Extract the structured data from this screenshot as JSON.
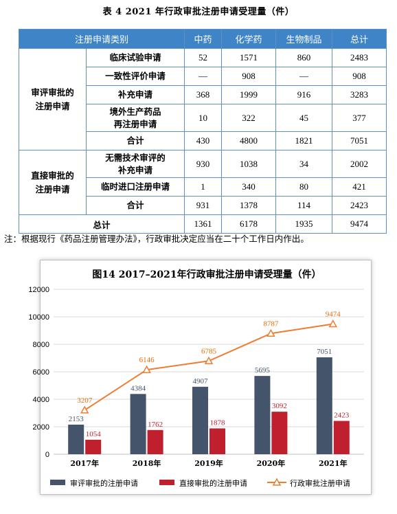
{
  "table": {
    "caption": "表 4   2021 年行政审批注册申请受理量（件）",
    "headers": [
      "注册申请类别",
      "中药",
      "化学药",
      "生物制品",
      "总计"
    ],
    "groups": [
      {
        "name_lines": [
          "审评审批的",
          "注册申请"
        ],
        "rows": [
          {
            "label_lines": [
              "临床试验申请"
            ],
            "values": [
              "52",
              "1571",
              "860",
              "2483"
            ]
          },
          {
            "label_lines": [
              "一致性评价申请"
            ],
            "values": [
              "—",
              "908",
              "—",
              "908"
            ]
          },
          {
            "label_lines": [
              "补充申请"
            ],
            "values": [
              "368",
              "1999",
              "916",
              "3283"
            ]
          },
          {
            "label_lines": [
              "境外生产药品",
              "再注册申请"
            ],
            "values": [
              "10",
              "322",
              "45",
              "377"
            ]
          },
          {
            "label_lines": [
              "合计"
            ],
            "values": [
              "430",
              "4800",
              "1821",
              "7051"
            ]
          }
        ]
      },
      {
        "name_lines": [
          "直接审批的",
          "注册申请"
        ],
        "rows": [
          {
            "label_lines": [
              "无需技术审评的",
              "补充申请"
            ],
            "values": [
              "930",
              "1038",
              "34",
              "2002"
            ]
          },
          {
            "label_lines": [
              "临时进口注册申请"
            ],
            "values": [
              "1",
              "340",
              "80",
              "421"
            ]
          },
          {
            "label_lines": [
              "合计"
            ],
            "values": [
              "931",
              "1378",
              "114",
              "2423"
            ]
          }
        ]
      }
    ],
    "total": {
      "label": "总计",
      "values": [
        "1361",
        "6178",
        "1935",
        "9474"
      ]
    }
  },
  "note": "注：根据现行《药品注册管理办法》，行政审批决定应当在二十个工作日内作出。",
  "chart_data": {
    "type": "bar",
    "title": "图14  2017–2021年行政审批注册申请受理量（件）",
    "categories": [
      "2017年",
      "2018年",
      "2019年",
      "2020年",
      "2021年"
    ],
    "ylim": [
      0,
      12000
    ],
    "yticks": [
      0,
      2000,
      4000,
      6000,
      8000,
      10000,
      12000
    ],
    "grid": true,
    "legend_position": "bottom",
    "series": [
      {
        "name": "审评审批的注册申请",
        "kind": "bar",
        "color": "#44546a",
        "values": [
          2153,
          4384,
          4907,
          5695,
          7051
        ]
      },
      {
        "name": "直接审批的注册申请",
        "kind": "bar",
        "color": "#c0202e",
        "values": [
          1054,
          1762,
          1878,
          3092,
          2423
        ]
      },
      {
        "name": "行政审批注册申请",
        "kind": "line",
        "color": "#ed7d31",
        "values": [
          3207,
          6146,
          6785,
          8787,
          9474
        ]
      }
    ]
  }
}
